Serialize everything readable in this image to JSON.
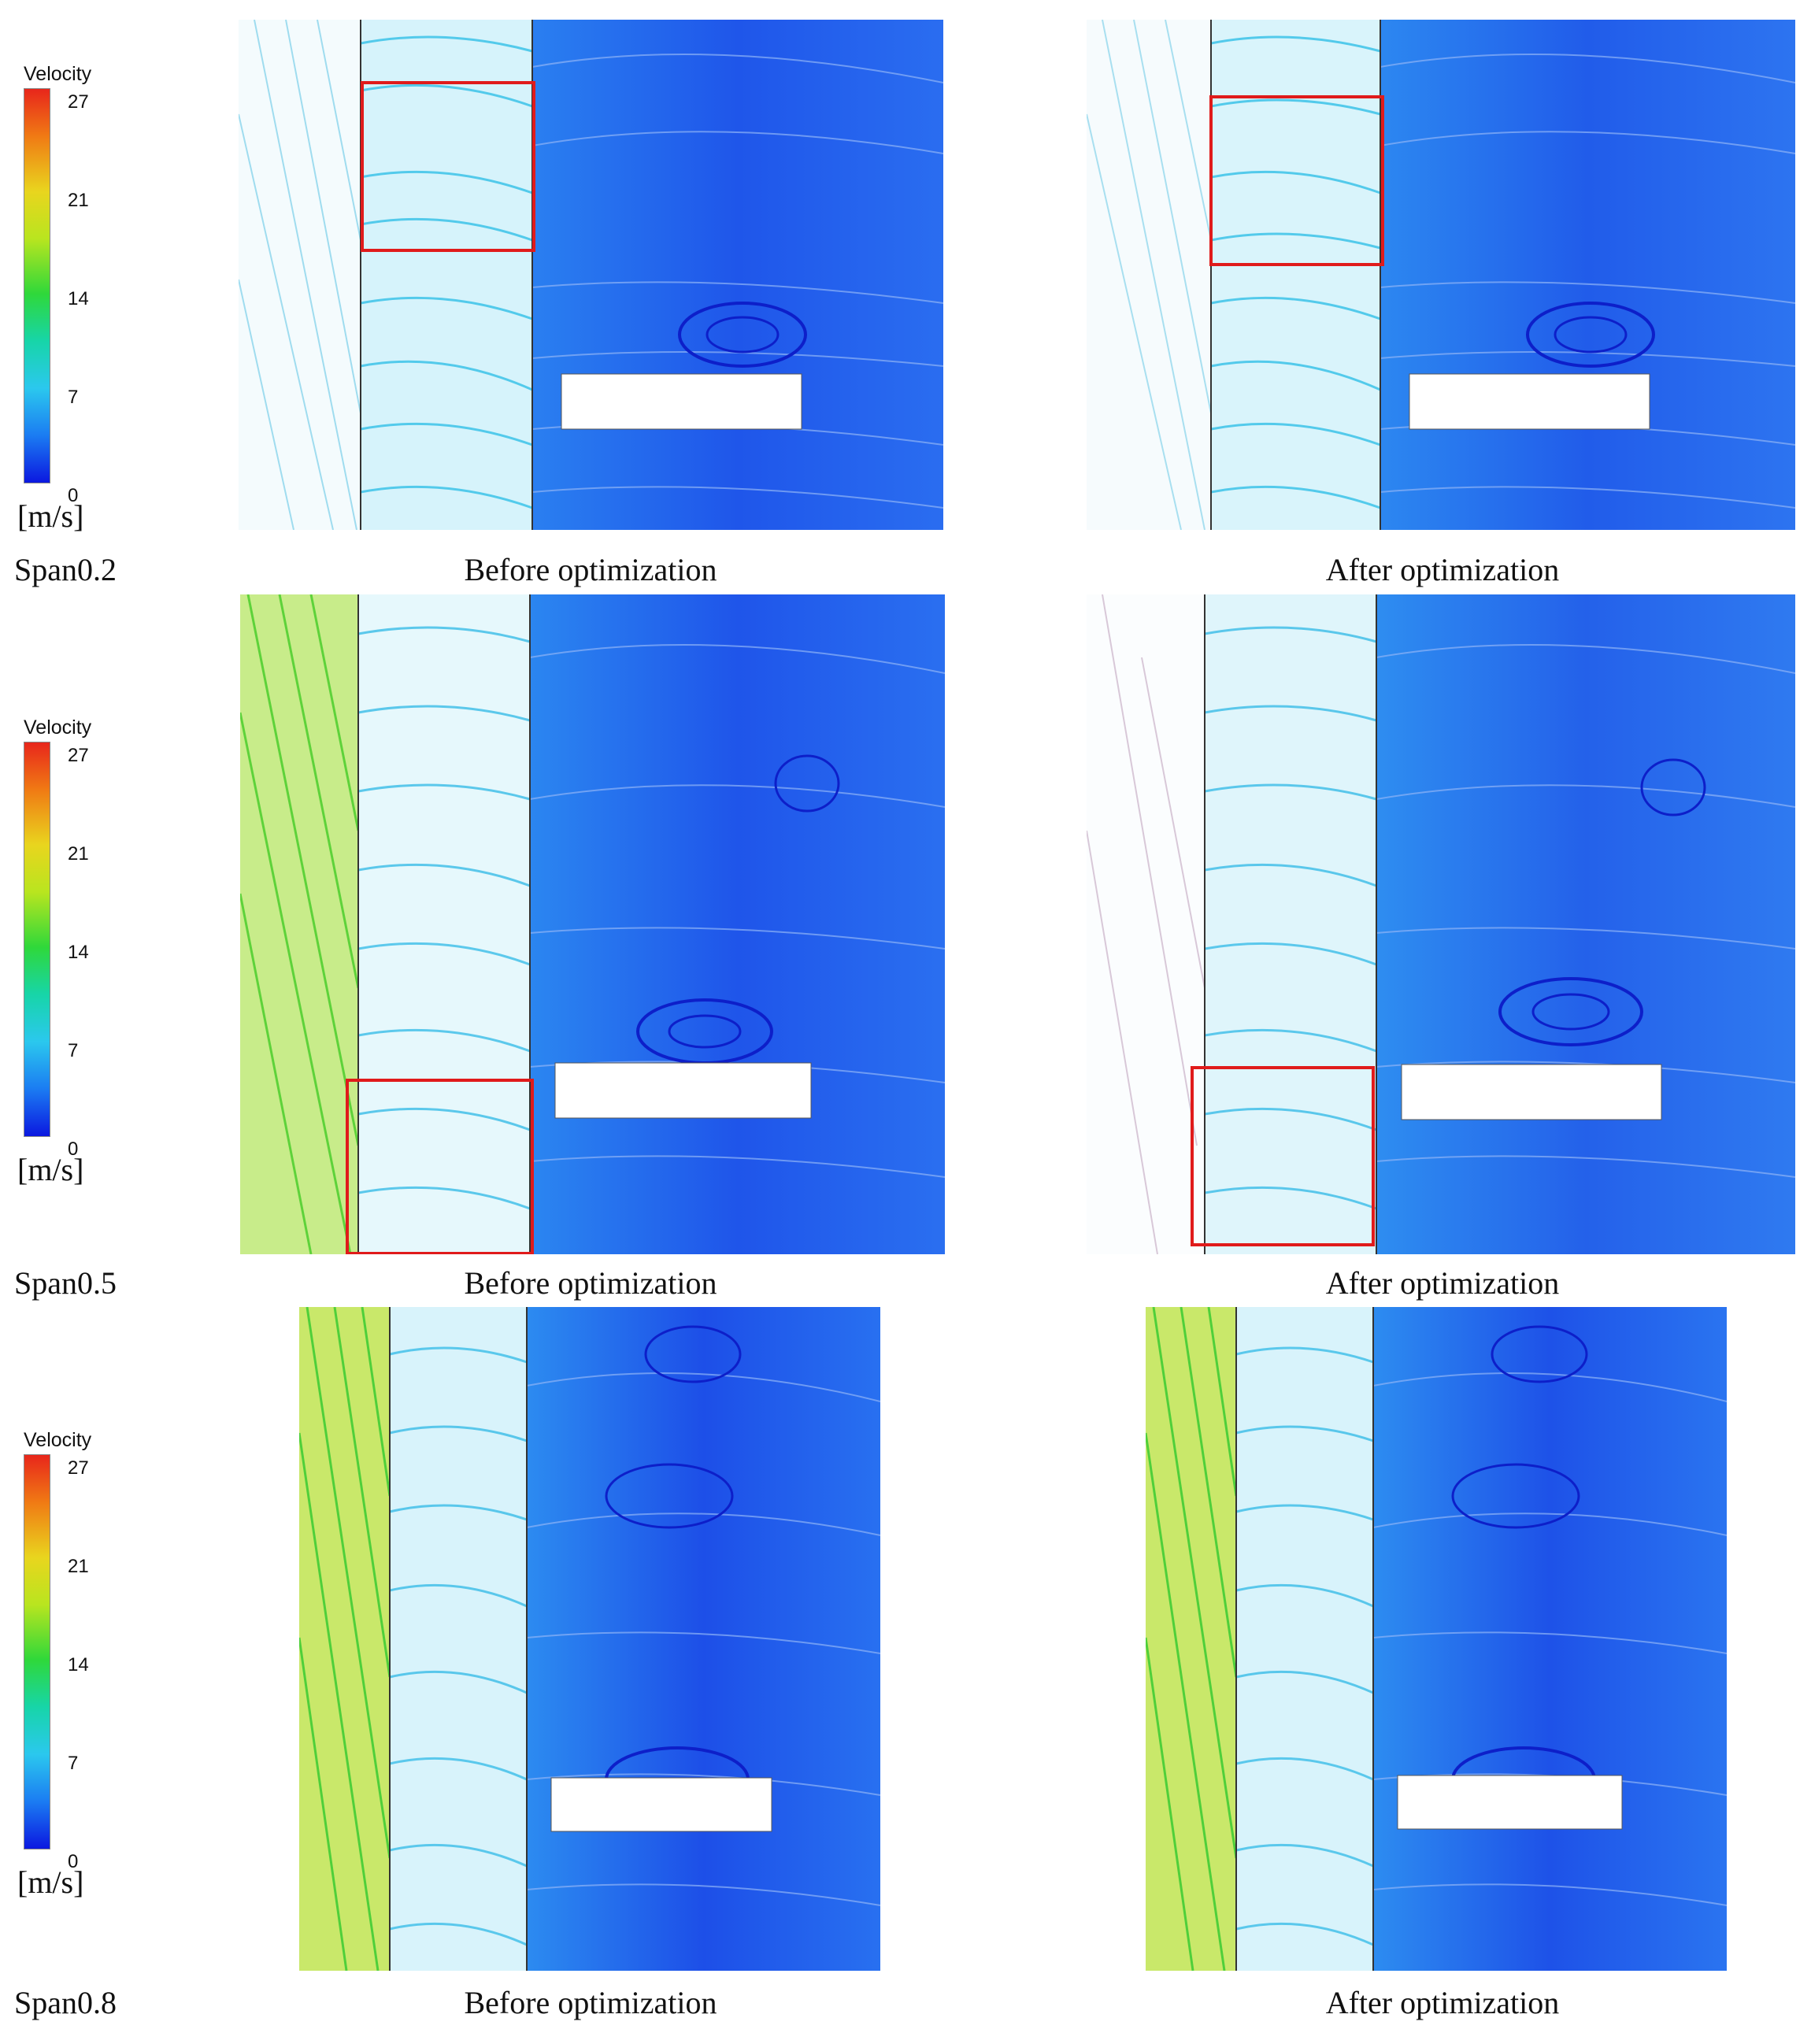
{
  "legend": {
    "title": "Velocity",
    "ticks": [
      "27",
      "21",
      "14",
      "7",
      "0"
    ],
    "unit": "[m/s]"
  },
  "rows": [
    {
      "span": "Span0.2",
      "before": "Before optimization",
      "after": "After optimization"
    },
    {
      "span": "Span0.5",
      "before": "Before optimization",
      "after": "After optimization"
    },
    {
      "span": "Span0.8",
      "before": "Before optimization",
      "after": "After optimization"
    }
  ],
  "colors": {
    "highlight_box": "#e01b1b",
    "fast_flow": "#2cc8ef",
    "slow_flow": "#1530e6",
    "inlet_flow": "#8fdc2a"
  }
}
